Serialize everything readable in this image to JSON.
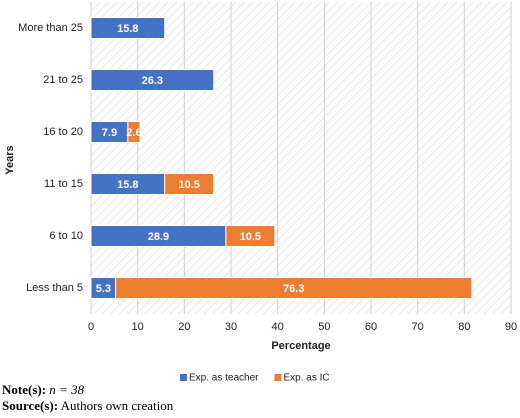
{
  "chart_data": {
    "type": "stacked-barh",
    "categories": [
      "More than 25",
      "21 to 25",
      "16 to 20",
      "11 to 15",
      "6 to 10",
      "Less than 5"
    ],
    "series": [
      {
        "name": "Exp. as teacher",
        "color": "#4472c4",
        "values": [
          15.8,
          26.3,
          7.9,
          15.8,
          28.9,
          5.3
        ]
      },
      {
        "name": "Exp. as IC",
        "color": "#ed7d31",
        "values": [
          null,
          null,
          2.6,
          10.5,
          10.5,
          76.3
        ]
      }
    ],
    "xlim": [
      0,
      90
    ],
    "xticks": [
      0,
      10,
      20,
      30,
      40,
      50,
      60,
      70,
      80,
      90
    ],
    "xlabel": "Percentage",
    "ylabel": "Years",
    "grid": true,
    "legend": "bottom"
  },
  "notes": {
    "note_label": "Note(s):",
    "note": "n = 38",
    "source_label": "Source(s):",
    "source": "Authors own creation"
  }
}
